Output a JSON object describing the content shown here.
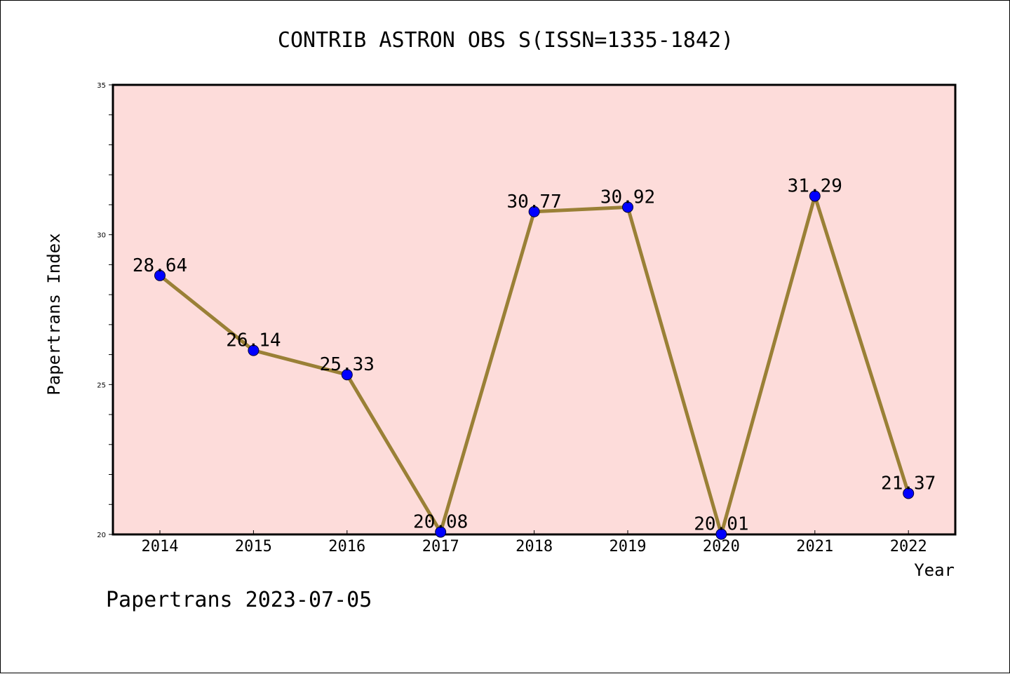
{
  "chart_data": {
    "type": "line",
    "title": "CONTRIB ASTRON OBS S(ISSN=1335-1842)",
    "xlabel": "Year",
    "ylabel": "Papertrans Index",
    "categories": [
      "2014",
      "2015",
      "2016",
      "2017",
      "2018",
      "2019",
      "2020",
      "2021",
      "2022"
    ],
    "series": [
      {
        "values": [
          28.64,
          26.14,
          25.33,
          20.08,
          30.77,
          30.92,
          20.01,
          31.29,
          21.37
        ],
        "labels": [
          "28.64",
          "26.14",
          "25.33",
          "20.08",
          "30.77",
          "30.92",
          "20.01",
          "31.29",
          "21.37"
        ],
        "line_color": "#9a8036",
        "marker_color": "#0000ff"
      }
    ],
    "ylim": [
      20,
      35
    ],
    "yticks": [
      "20",
      "25",
      "30",
      "35"
    ],
    "grid": false,
    "plot_background": "#fddcda",
    "footer": "Papertrans 2023-07-05"
  }
}
